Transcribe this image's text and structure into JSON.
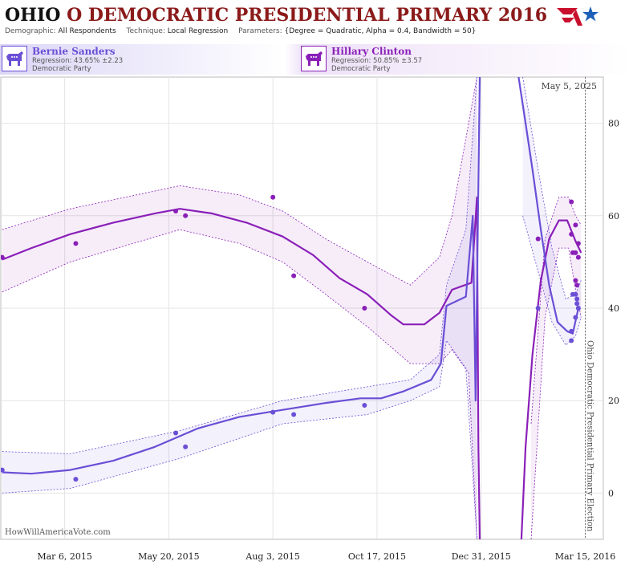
{
  "title": {
    "state": "OHIO",
    "rest": "O DEMOCRATIC PRESIDENTIAL PRIMARY 2016"
  },
  "params": {
    "demographic_key": "Demographic:",
    "demographic_val": "All Respondents",
    "technique_key": "Technique:",
    "technique_val": "Local Regression",
    "parameters_key": "Parameters:",
    "parameters_val": "{Degree = Quadratic, Alpha = 0.4, Bandwidth = 50}"
  },
  "candidates": [
    {
      "name": "Bernie Sanders",
      "regression": "Regression: 43.65% ±2.23",
      "party": "Democratic Party",
      "color": "#6a4fd6"
    },
    {
      "name": "Hillary Clinton",
      "regression": "Regression: 50.85% ±3.57",
      "party": "Democratic Party",
      "color": "#8a1fb8"
    }
  ],
  "watermark": "HowWillAmericaVote.com",
  "chart_data": {
    "type": "line",
    "x_tick_labels": [
      "Mar 6, 2015",
      "May 20, 2015",
      "Aug 3, 2015",
      "Oct 17, 2015",
      "Dec 31, 2015",
      "Mar 15, 2016"
    ],
    "x_tick_dates": [
      "2015-03-06",
      "2015-05-20",
      "2015-08-03",
      "2015-10-17",
      "2015-12-31",
      "2016-03-15"
    ],
    "xlim": [
      "2015-01-19",
      "2016-03-28"
    ],
    "ylim": [
      -10,
      90
    ],
    "y_ticks": [
      0,
      20,
      40,
      60,
      80
    ],
    "grid": true,
    "annotation_date": "May 5, 2025",
    "election_label": "Ohio Democratic Presidential Primary Election",
    "election_date": "2016-03-15",
    "series": [
      {
        "name": "Hillary Clinton",
        "color": "#8a1fb8",
        "points": [
          [
            "2015-01-20",
            51
          ],
          [
            "2015-03-14",
            54
          ],
          [
            "2015-05-25",
            61
          ],
          [
            "2015-06-01",
            60
          ],
          [
            "2015-08-03",
            64
          ],
          [
            "2015-08-18",
            47
          ],
          [
            "2015-10-08",
            40
          ],
          [
            "2016-02-10",
            55
          ],
          [
            "2016-03-05",
            63
          ],
          [
            "2016-03-05",
            56
          ],
          [
            "2016-03-08",
            58
          ],
          [
            "2016-03-06",
            52
          ],
          [
            "2016-03-08",
            52
          ],
          [
            "2016-03-10",
            51
          ],
          [
            "2016-03-10",
            54
          ],
          [
            "2016-03-08",
            46
          ],
          [
            "2016-03-09",
            45
          ]
        ],
        "trend": [
          [
            "2015-01-20",
            50.5
          ],
          [
            "2015-02-10",
            53
          ],
          [
            "2015-03-10",
            56
          ],
          [
            "2015-04-10",
            58.5
          ],
          [
            "2015-05-10",
            60.5
          ],
          [
            "2015-05-28",
            61.5
          ],
          [
            "2015-06-20",
            60.5
          ],
          [
            "2015-07-15",
            58.5
          ],
          [
            "2015-08-10",
            55.5
          ],
          [
            "2015-09-01",
            51.5
          ],
          [
            "2015-09-20",
            46.5
          ],
          [
            "2015-10-10",
            43
          ],
          [
            "2015-10-27",
            38.5
          ],
          [
            "2015-11-05",
            36.5
          ],
          [
            "2015-11-20",
            36.5
          ],
          [
            "2015-12-01",
            39
          ],
          [
            "2015-12-10",
            44
          ],
          [
            "2015-12-24",
            45.5
          ],
          [
            "2015-12-28",
            64
          ],
          [
            "2015-12-29",
            10
          ],
          [
            "2015-12-30",
            -10
          ]
        ],
        "trend_tail": [
          [
            "2016-01-29",
            -10
          ],
          [
            "2016-02-01",
            10
          ],
          [
            "2016-02-06",
            30
          ],
          [
            "2016-02-12",
            46
          ],
          [
            "2016-02-18",
            55
          ],
          [
            "2016-02-25",
            59
          ],
          [
            "2016-03-02",
            59
          ],
          [
            "2016-03-08",
            54.5
          ],
          [
            "2016-03-12",
            52
          ]
        ],
        "band_upper": [
          [
            "2015-01-20",
            57
          ],
          [
            "2015-03-10",
            61.5
          ],
          [
            "2015-05-28",
            66.5
          ],
          [
            "2015-07-10",
            64.5
          ],
          [
            "2015-08-10",
            61
          ],
          [
            "2015-09-10",
            55
          ],
          [
            "2015-10-10",
            50
          ],
          [
            "2015-11-10",
            45
          ],
          [
            "2015-12-01",
            51
          ],
          [
            "2015-12-10",
            60
          ],
          [
            "2015-12-22",
            80
          ],
          [
            "2015-12-28",
            90
          ]
        ],
        "band_lower": [
          [
            "2015-01-20",
            43.5
          ],
          [
            "2015-03-10",
            50
          ],
          [
            "2015-05-28",
            57
          ],
          [
            "2015-07-10",
            54
          ],
          [
            "2015-08-10",
            50
          ],
          [
            "2015-09-10",
            43
          ],
          [
            "2015-10-10",
            36
          ],
          [
            "2015-11-10",
            28
          ],
          [
            "2015-12-01",
            28
          ],
          [
            "2015-12-10",
            31
          ],
          [
            "2015-12-22",
            26
          ],
          [
            "2015-12-28",
            -10
          ]
        ],
        "band_upper_tail": [
          [
            "2016-02-05",
            15
          ],
          [
            "2016-02-15",
            55
          ],
          [
            "2016-02-25",
            64
          ],
          [
            "2016-03-03",
            64
          ],
          [
            "2016-03-08",
            60
          ],
          [
            "2016-03-12",
            58
          ]
        ],
        "band_lower_tail": [
          [
            "2016-02-05",
            -10
          ],
          [
            "2016-02-15",
            38
          ],
          [
            "2016-02-25",
            53
          ],
          [
            "2016-03-03",
            53
          ],
          [
            "2016-03-08",
            44
          ],
          [
            "2016-03-12",
            38
          ]
        ]
      },
      {
        "name": "Bernie Sanders",
        "color": "#6a4fd6",
        "points": [
          [
            "2015-01-20",
            5
          ],
          [
            "2015-03-14",
            3
          ],
          [
            "2015-05-25",
            13
          ],
          [
            "2015-06-01",
            10
          ],
          [
            "2015-08-03",
            17.5
          ],
          [
            "2015-08-18",
            17
          ],
          [
            "2015-10-08",
            19
          ],
          [
            "2016-02-10",
            40
          ],
          [
            "2016-03-05",
            33
          ],
          [
            "2016-03-05",
            35
          ],
          [
            "2016-03-06",
            43
          ],
          [
            "2016-03-08",
            43
          ],
          [
            "2016-03-08",
            38
          ],
          [
            "2016-03-09",
            41
          ],
          [
            "2016-03-10",
            40
          ],
          [
            "2016-03-09",
            42
          ]
        ],
        "trend": [
          [
            "2015-01-20",
            4.5
          ],
          [
            "2015-02-10",
            4.2
          ],
          [
            "2015-03-10",
            5
          ],
          [
            "2015-04-10",
            7
          ],
          [
            "2015-05-10",
            10
          ],
          [
            "2015-06-10",
            14
          ],
          [
            "2015-07-10",
            16.5
          ],
          [
            "2015-08-10",
            18
          ],
          [
            "2015-09-10",
            19.5
          ],
          [
            "2015-10-05",
            20.5
          ],
          [
            "2015-10-20",
            20.5
          ],
          [
            "2015-11-05",
            22
          ],
          [
            "2015-11-25",
            24.5
          ],
          [
            "2015-12-02",
            28
          ],
          [
            "2015-12-06",
            40.5
          ],
          [
            "2015-12-20",
            42.5
          ],
          [
            "2015-12-25",
            60
          ],
          [
            "2015-12-27",
            20
          ],
          [
            "2015-12-30",
            90
          ]
        ],
        "trend_tail": [
          [
            "2016-01-27",
            90
          ],
          [
            "2016-02-01",
            80
          ],
          [
            "2016-02-06",
            70
          ],
          [
            "2016-02-12",
            57
          ],
          [
            "2016-02-18",
            45
          ],
          [
            "2016-02-24",
            37
          ],
          [
            "2016-03-02",
            35
          ],
          [
            "2016-03-06",
            34.5
          ],
          [
            "2016-03-10",
            40
          ]
        ],
        "band_upper": [
          [
            "2015-01-20",
            9
          ],
          [
            "2015-03-10",
            8.5
          ],
          [
            "2015-05-28",
            13.5
          ],
          [
            "2015-08-10",
            20
          ],
          [
            "2015-10-10",
            23
          ],
          [
            "2015-11-10",
            24.5
          ],
          [
            "2015-12-01",
            30
          ],
          [
            "2015-12-06",
            45
          ],
          [
            "2015-12-20",
            57
          ],
          [
            "2015-12-28",
            90
          ]
        ],
        "band_lower": [
          [
            "2015-01-20",
            0
          ],
          [
            "2015-03-10",
            1
          ],
          [
            "2015-05-28",
            7.5
          ],
          [
            "2015-08-10",
            15
          ],
          [
            "2015-10-10",
            17
          ],
          [
            "2015-11-10",
            20
          ],
          [
            "2015-12-01",
            23
          ],
          [
            "2015-12-06",
            33
          ],
          [
            "2015-12-20",
            27
          ],
          [
            "2015-12-28",
            -10
          ]
        ],
        "band_upper_tail": [
          [
            "2016-01-30",
            90
          ],
          [
            "2016-02-10",
            70
          ],
          [
            "2016-02-20",
            53
          ],
          [
            "2016-03-01",
            42
          ],
          [
            "2016-03-08",
            43
          ],
          [
            "2016-03-12",
            46
          ]
        ],
        "band_lower_tail": [
          [
            "2016-01-30",
            60
          ],
          [
            "2016-02-10",
            48
          ],
          [
            "2016-02-20",
            37
          ],
          [
            "2016-03-01",
            32
          ],
          [
            "2016-03-08",
            34
          ],
          [
            "2016-03-12",
            38
          ]
        ]
      }
    ]
  }
}
